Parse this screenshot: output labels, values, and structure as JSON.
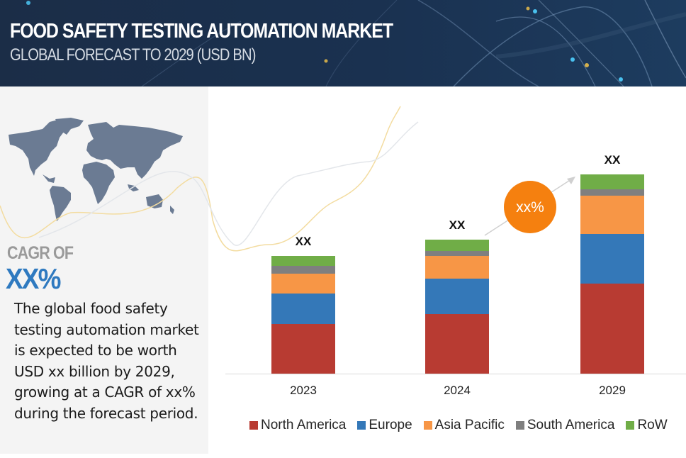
{
  "header": {
    "title": "FOOD SAFETY TESTING AUTOMATION MARKET",
    "subtitle": "GLOBAL FORECAST TO 2029 (USD BN)"
  },
  "panel": {
    "map_icon": "world-map-icon",
    "cagr_label": "CAGR OF",
    "cagr_value": "XX%",
    "description": "The global food safety testing automation market is expected to be worth USD xx billion by 2029, growing at a CAGR of xx% during the forecast period."
  },
  "colors": {
    "header_bg": "#1b2d47",
    "panel_bg": "#f4f4f4",
    "cagr_blue": "#2f7ac0",
    "badge": "#f5800f",
    "map": "#6b7b93"
  },
  "chart_data": {
    "type": "bar",
    "stacked": true,
    "title": "FOOD SAFETY TESTING AUTOMATION MARKET",
    "subtitle": "GLOBAL FORECAST TO 2029 (USD BN)",
    "xlabel": "",
    "ylabel": "",
    "categories": [
      "2023",
      "2024",
      "2029"
    ],
    "series": [
      {
        "name": "North America",
        "color": "#b83b32",
        "values": [
          70,
          84,
          127
        ]
      },
      {
        "name": "Europe",
        "color": "#3478b8",
        "values": [
          43,
          50,
          70
        ]
      },
      {
        "name": "Asia Pacific",
        "color": "#f79646",
        "values": [
          28,
          32,
          54
        ]
      },
      {
        "name": "South America",
        "color": "#7f7f7f",
        "values": [
          11,
          7,
          9
        ]
      },
      {
        "name": "RoW",
        "color": "#70ad47",
        "values": [
          14,
          16,
          21
        ]
      }
    ],
    "data_labels": [
      "XX",
      "XX",
      "XX"
    ],
    "ylim": [
      0,
      300
    ],
    "grid": false,
    "legend_position": "bottom",
    "annotation": {
      "label": "xx%",
      "meaning": "CAGR badge on arrow from 2024 to 2029"
    }
  }
}
